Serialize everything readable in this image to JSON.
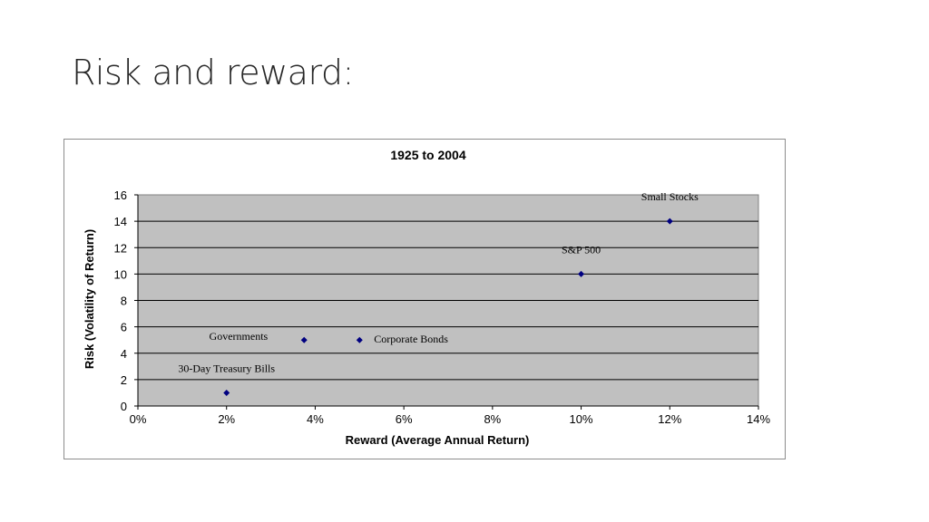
{
  "slide": {
    "title": "Risk and reward:"
  },
  "chart_data": {
    "type": "scatter",
    "title": "1925 to 2004",
    "xlabel": "Reward (Average Annual Return)",
    "ylabel": "Risk (Volatility of Return)",
    "xlim": [
      0,
      14
    ],
    "ylim": [
      0,
      16
    ],
    "x_ticks": [
      "0%",
      "2%",
      "4%",
      "6%",
      "8%",
      "10%",
      "12%",
      "14%"
    ],
    "y_ticks": [
      "0",
      "2",
      "4",
      "6",
      "8",
      "10",
      "12",
      "14",
      "16"
    ],
    "grid": true,
    "colors": {
      "plot_area": "#c0c0c0",
      "marker": "#000080",
      "gridline": "#000000"
    },
    "points": [
      {
        "label": "30-Day Treasury Bills",
        "x": 2.0,
        "y": 1,
        "label_side": "above"
      },
      {
        "label": "Governments",
        "x": 3.75,
        "y": 5,
        "label_side": "left"
      },
      {
        "label": "Corporate Bonds",
        "x": 5.0,
        "y": 5,
        "label_side": "right"
      },
      {
        "label": "S&P 500",
        "x": 10.0,
        "y": 10,
        "label_side": "above"
      },
      {
        "label": "Small Stocks",
        "x": 12.0,
        "y": 14,
        "label_side": "above"
      }
    ]
  }
}
